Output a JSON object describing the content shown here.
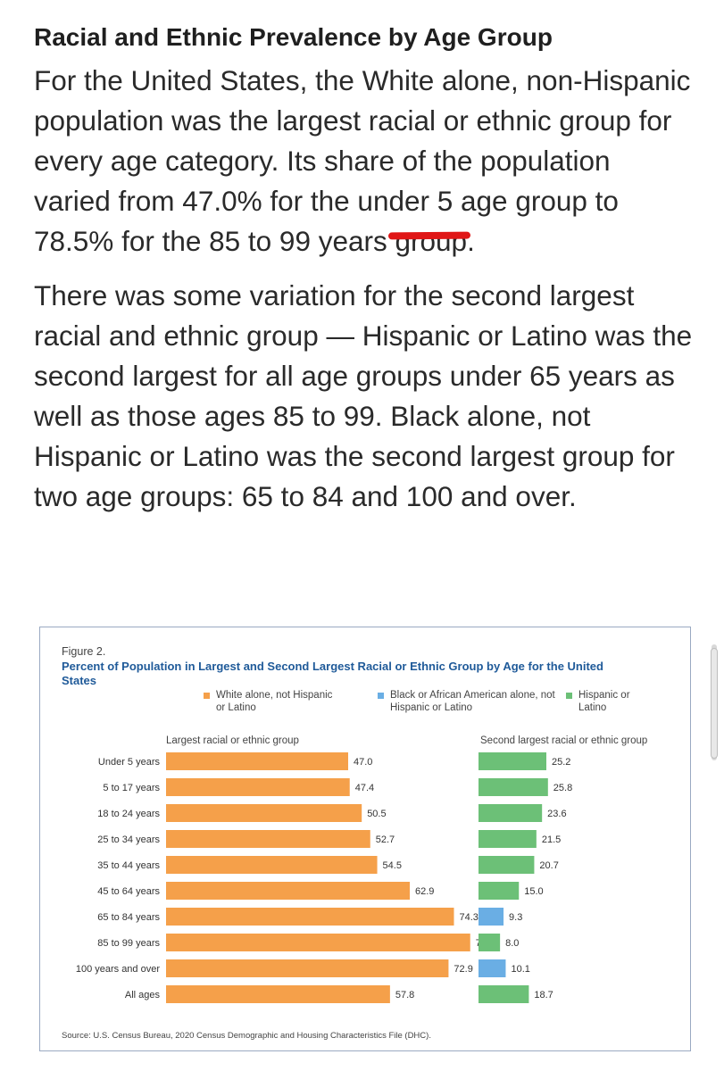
{
  "article": {
    "heading": "Racial and Ethnic Prevalence by Age Group",
    "paragraph1": "For the United States, the White alone, non-Hispanic population was the largest racial or ethnic group for every age category. Its share of the population varied from 47.0% for the under 5 age group to 78.5% for the 85 to 99 years group.",
    "paragraph2": "There was some variation for the second largest racial and ethnic group — Hispanic or Latino was the second largest for all age groups under 65 years as well as those ages 85 to 99. Black alone, not Hispanic or Latino was the second largest group for two age groups: 65 to 84 and 100 and over."
  },
  "figure": {
    "label": "Figure 2.",
    "title": "Percent of Population in Largest and Second Largest Racial or Ethnic Group by Age for the United States",
    "legend": [
      {
        "label": "White alone, not Hispanic or Latino",
        "color": "#f5a04a"
      },
      {
        "label": "Black or African American alone, not Hispanic or Latino",
        "color": "#6aaee4"
      },
      {
        "label": "Hispanic or Latino",
        "color": "#6cc077"
      }
    ],
    "left_header": "Largest racial or ethnic group",
    "right_header": "Second largest racial or ethnic group",
    "source": "Source: U.S. Census Bureau, 2020 Census Demographic and Housing Characteristics File (DHC)."
  },
  "chart_data": {
    "type": "bar",
    "categories": [
      "Under 5 years",
      "5 to 17 years",
      "18 to 24 years",
      "25 to 34 years",
      "35 to 44 years",
      "45 to 64 years",
      "65 to 84 years",
      "85 to 99 years",
      "100 years and over",
      "All ages"
    ],
    "largest": {
      "values": [
        47.0,
        47.4,
        50.5,
        52.7,
        54.5,
        62.9,
        74.3,
        78.5,
        72.9,
        57.8
      ],
      "labels": [
        "47.0",
        "47.4",
        "50.5",
        "52.7",
        "54.5",
        "62.9",
        "74.3",
        "78.5",
        "72.9",
        "57.8"
      ],
      "groups": [
        "White alone, not Hispanic or Latino",
        "White alone, not Hispanic or Latino",
        "White alone, not Hispanic or Latino",
        "White alone, not Hispanic or Latino",
        "White alone, not Hispanic or Latino",
        "White alone, not Hispanic or Latino",
        "White alone, not Hispanic or Latino",
        "White alone, not Hispanic or Latino",
        "White alone, not Hispanic or Latino",
        "White alone, not Hispanic or Latino"
      ]
    },
    "second_largest": {
      "values": [
        25.2,
        25.8,
        23.6,
        21.5,
        20.7,
        15.0,
        9.3,
        8.0,
        10.1,
        18.7
      ],
      "labels": [
        "25.2",
        "25.8",
        "23.6",
        "21.5",
        "20.7",
        "15.0",
        "9.3",
        "8.0",
        "10.1",
        "18.7"
      ],
      "groups": [
        "Hispanic or Latino",
        "Hispanic or Latino",
        "Hispanic or Latino",
        "Hispanic or Latino",
        "Hispanic or Latino",
        "Hispanic or Latino",
        "Black or African American alone, not Hispanic or Latino",
        "Hispanic or Latino",
        "Black or African American alone, not Hispanic or Latino",
        "Hispanic or Latino"
      ]
    },
    "colors": {
      "White alone, not Hispanic or Latino": "#f5a04a",
      "Black or African American alone, not Hispanic or Latino": "#6aaee4",
      "Hispanic or Latino": "#6cc077"
    }
  }
}
